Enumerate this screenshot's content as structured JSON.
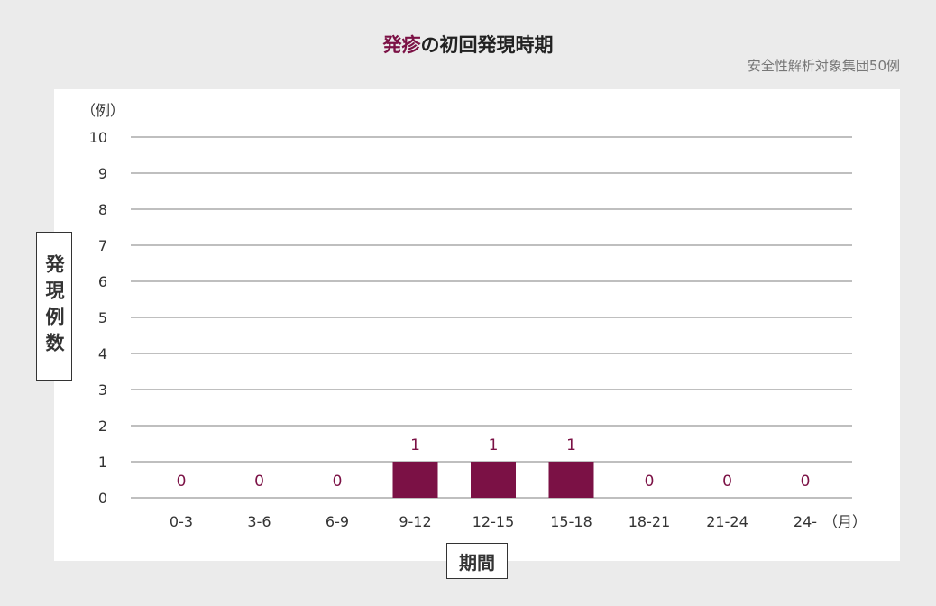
{
  "title": {
    "accent": "発疹",
    "rest": "の初回発現時期"
  },
  "subtitle": "安全性解析対象集団50例",
  "colors": {
    "bar": "#7b1145",
    "label": "#7b1145",
    "grid": "#aaaaaa"
  },
  "chart_data": {
    "type": "bar",
    "ylabel": "発現例数",
    "yunit": "（例）",
    "xlabel": "期間",
    "xunit": "（月）",
    "ylim": [
      0,
      10
    ],
    "yticks": [
      0,
      1,
      2,
      3,
      4,
      5,
      6,
      7,
      8,
      9,
      10
    ],
    "grid": true,
    "categories": [
      "0-3",
      "3-6",
      "6-9",
      "9-12",
      "12-15",
      "15-18",
      "18-21",
      "21-24",
      "24-"
    ],
    "values": [
      0,
      0,
      0,
      1,
      1,
      1,
      0,
      0,
      0
    ]
  }
}
